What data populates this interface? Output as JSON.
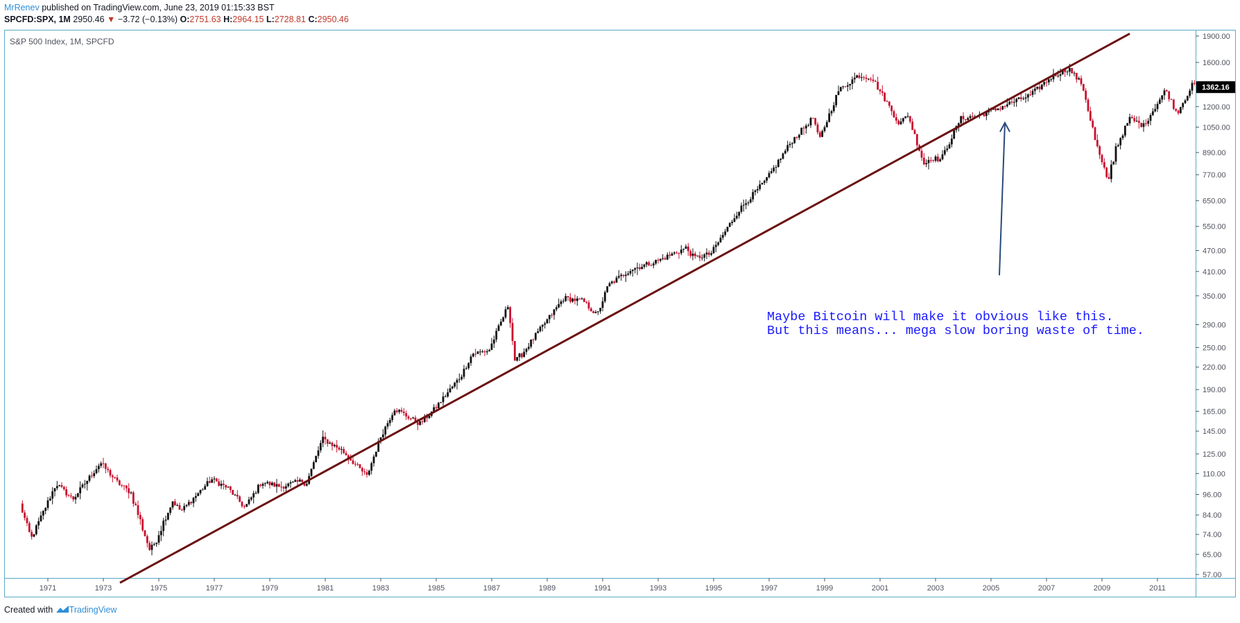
{
  "header": {
    "author": "MrRenev",
    "published": "published on TradingView.com, June 23, 2019 01:15:33 BST",
    "symbol": "SPCFD:SPX, 1M",
    "price": "2950.46",
    "change_arrow": "▼",
    "change": "−3.72 (−0.13%)",
    "o_label": "O:",
    "o_value": "2751.63",
    "h_label": "H:",
    "h_value": "2964.15",
    "l_label": "L:",
    "l_value": "2728.81",
    "c_label": "C:",
    "c_value": "2950.46"
  },
  "footer": {
    "created_with": "Created with",
    "brand": "TradingView"
  },
  "colors": {
    "frame": "#5aa9c7",
    "up": "#111111",
    "down": "#c8102e",
    "trendline": "#6b1111",
    "arrow": "#2a4a7a",
    "note": "#1a1aff"
  },
  "chart_data": {
    "type": "candlestick",
    "title": "S&P 500 Index, 1M, SPCFD",
    "yscale": "log",
    "ylim": [
      55,
      1950
    ],
    "xlim": [
      1969.6,
      2012.45
    ],
    "y_ticks": [
      "1900.00",
      "1600.00",
      "1200.00",
      "1050.00",
      "890.00",
      "770.00",
      "650.00",
      "550.00",
      "470.00",
      "410.00",
      "350.00",
      "290.00",
      "250.00",
      "220.00",
      "190.00",
      "165.00",
      "145.00",
      "125.00",
      "110.00",
      "96.00",
      "84.00",
      "74.00",
      "65.00",
      "57.00"
    ],
    "x_ticks": [
      "1971",
      "1973",
      "1975",
      "1977",
      "1979",
      "1981",
      "1983",
      "1985",
      "1987",
      "1989",
      "1991",
      "1993",
      "1995",
      "1997",
      "1999",
      "2001",
      "2003",
      "2005",
      "2007",
      "2009",
      "2011"
    ],
    "last_price_label": "1362.16",
    "last_price": 1362.16,
    "anchors": [
      [
        1970.0,
        90
      ],
      [
        1970.4,
        72
      ],
      [
        1971.3,
        103
      ],
      [
        1971.9,
        93
      ],
      [
        1972.9,
        118
      ],
      [
        1973.5,
        104
      ],
      [
        1974.0,
        97
      ],
      [
        1974.7,
        66
      ],
      [
        1975.5,
        92
      ],
      [
        1975.8,
        86
      ],
      [
        1976.9,
        106
      ],
      [
        1977.5,
        100
      ],
      [
        1978.1,
        88
      ],
      [
        1978.7,
        104
      ],
      [
        1979.4,
        101
      ],
      [
        1980.2,
        105
      ],
      [
        1980.3,
        102
      ],
      [
        1980.9,
        138
      ],
      [
        1981.6,
        128
      ],
      [
        1982.5,
        108
      ],
      [
        1983.0,
        140
      ],
      [
        1983.5,
        168
      ],
      [
        1984.4,
        152
      ],
      [
        1984.9,
        166
      ],
      [
        1985.9,
        208
      ],
      [
        1986.3,
        240
      ],
      [
        1986.9,
        245
      ],
      [
        1987.6,
        330
      ],
      [
        1987.85,
        225
      ],
      [
        1988.5,
        265
      ],
      [
        1989.6,
        345
      ],
      [
        1990.3,
        338
      ],
      [
        1990.8,
        308
      ],
      [
        1991.2,
        375
      ],
      [
        1992.0,
        415
      ],
      [
        1993.0,
        440
      ],
      [
        1994.0,
        478
      ],
      [
        1994.3,
        448
      ],
      [
        1994.9,
        460
      ],
      [
        1995.9,
        610
      ],
      [
        1996.9,
        745
      ],
      [
        1997.8,
        955
      ],
      [
        1998.6,
        1120
      ],
      [
        1998.8,
        960
      ],
      [
        1999.5,
        1330
      ],
      [
        2000.2,
        1470
      ],
      [
        2000.7,
        1450
      ],
      [
        2001.2,
        1250
      ],
      [
        2001.7,
        1070
      ],
      [
        2002.0,
        1140
      ],
      [
        2002.6,
        820
      ],
      [
        2002.8,
        860
      ],
      [
        2003.2,
        850
      ],
      [
        2003.9,
        1110
      ],
      [
        2004.5,
        1130
      ],
      [
        2005.2,
        1180
      ],
      [
        2005.6,
        1220
      ],
      [
        2006.4,
        1290
      ],
      [
        2007.2,
        1460
      ],
      [
        2007.8,
        1540
      ],
      [
        2008.3,
        1380
      ],
      [
        2008.8,
        930
      ],
      [
        2009.2,
        730
      ],
      [
        2009.5,
        920
      ],
      [
        2010.0,
        1110
      ],
      [
        2010.5,
        1060
      ],
      [
        2011.3,
        1340
      ],
      [
        2011.7,
        1150
      ],
      [
        2012.3,
        1400
      ],
      [
        2012.45,
        1362
      ]
    ],
    "trendline": {
      "from": [
        1973.6,
        54
      ],
      "to": [
        2010.0,
        1930
      ]
    },
    "arrow": {
      "from": [
        2005.3,
        400
      ],
      "to": [
        2005.5,
        1080
      ]
    },
    "annotation": [
      "Maybe Bitcoin will make it obvious like this.",
      "But this means... mega slow boring waste of time."
    ]
  }
}
